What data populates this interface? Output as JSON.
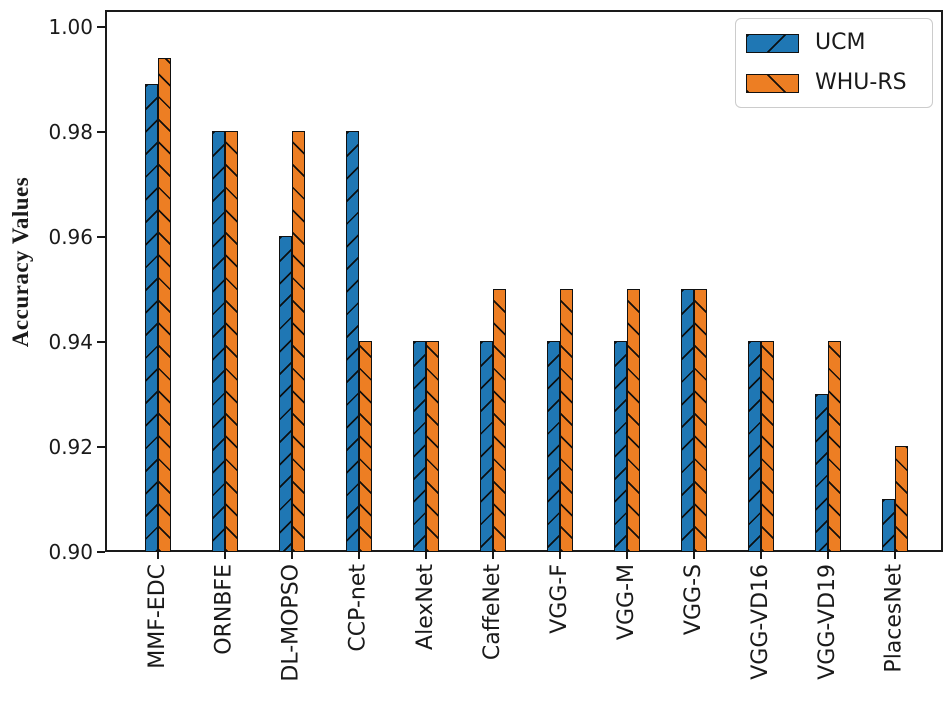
{
  "figure": {
    "background": "#ffffff",
    "axis_color": "#1a1a1a"
  },
  "chart_data": {
    "type": "bar",
    "title": "",
    "xlabel": "",
    "ylabel": "Accuracy Values",
    "categories": [
      "MMF-EDC",
      "ORNBFE",
      "DL-MOPSO",
      "CCP-net",
      "AlexNet",
      "CaffeNet",
      "VGG-F",
      "VGG-M",
      "VGG-S",
      "VGG-VD16",
      "VGG-VD19",
      "PlacesNet"
    ],
    "series": [
      {
        "name": "UCM",
        "color": "#1f77b4",
        "hatch": "/",
        "values": [
          0.989,
          0.98,
          0.96,
          0.98,
          0.94,
          0.94,
          0.94,
          0.94,
          0.95,
          0.94,
          0.93,
          0.91
        ]
      },
      {
        "name": "WHU-RS",
        "color": "#ed7e23",
        "hatch": "\\",
        "values": [
          0.994,
          0.98,
          0.98,
          0.94,
          0.94,
          0.95,
          0.95,
          0.95,
          0.95,
          0.94,
          0.94,
          0.92
        ]
      }
    ],
    "ylim": [
      0.9,
      1.0032
    ],
    "yticks": [
      0.9,
      0.92,
      0.94,
      0.96,
      0.98,
      1.0
    ],
    "ytick_labels": [
      "0.90",
      "0.92",
      "0.94",
      "0.96",
      "0.98",
      "1.00"
    ],
    "bar_edge_color": "#111111",
    "grid": false,
    "legend_position": "upper right"
  },
  "legend": {
    "items": [
      {
        "label": "UCM"
      },
      {
        "label": "WHU-RS"
      }
    ]
  }
}
